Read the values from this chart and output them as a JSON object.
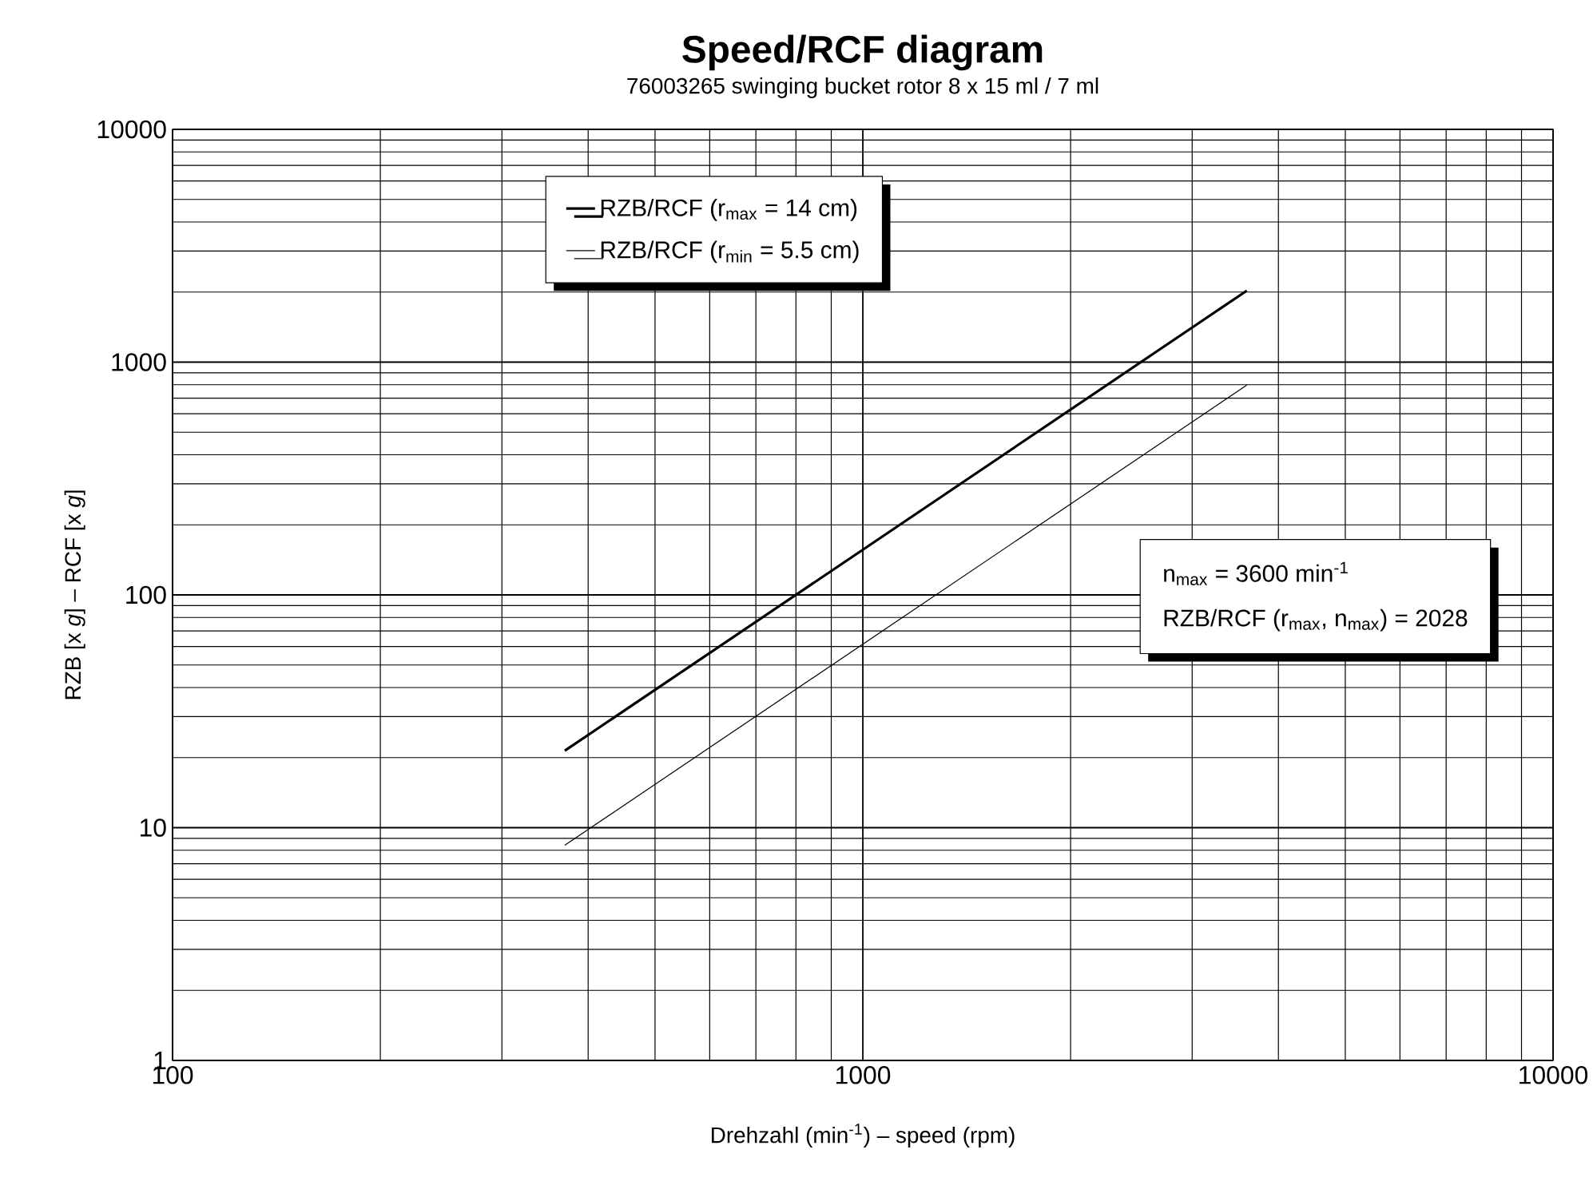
{
  "chart_data": {
    "type": "line",
    "title": "Speed/RCF diagram",
    "subtitle": "76003265 swinging bucket rotor 8 x 15 ml / 7 ml",
    "xlabel": "Drehzahl (min$^{-1}$) – speed (rpm)",
    "ylabel": "RZB [x *g*] – RCF [x *g*]",
    "x": [
      370,
      3600
    ],
    "series": [
      {
        "name": "RZB/RCF (r$_{max}$ =  14 cm)",
        "color": "#000000",
        "values": [
          21.4,
          2028
        ]
      },
      {
        "name": "RZB/RCF (r$_{min}$ =  5.5  cm)",
        "color": "#000000",
        "values": [
          8.4,
          797
        ]
      }
    ],
    "annotations": [
      "n$_{max}$ = 3600 min$^{-1}$",
      "RZB/RCF (r$_{max}$, n$_{max}$) = 2028"
    ],
    "log": "xy",
    "xlim": [
      100,
      10000
    ],
    "ylim": [
      1,
      10000
    ],
    "xticks": [
      100,
      1000,
      10000
    ],
    "yticks": [
      1,
      10,
      100,
      1000,
      10000
    ],
    "grid": true,
    "legend": "top left",
    "marker": "none",
    "line_style": "solid"
  }
}
